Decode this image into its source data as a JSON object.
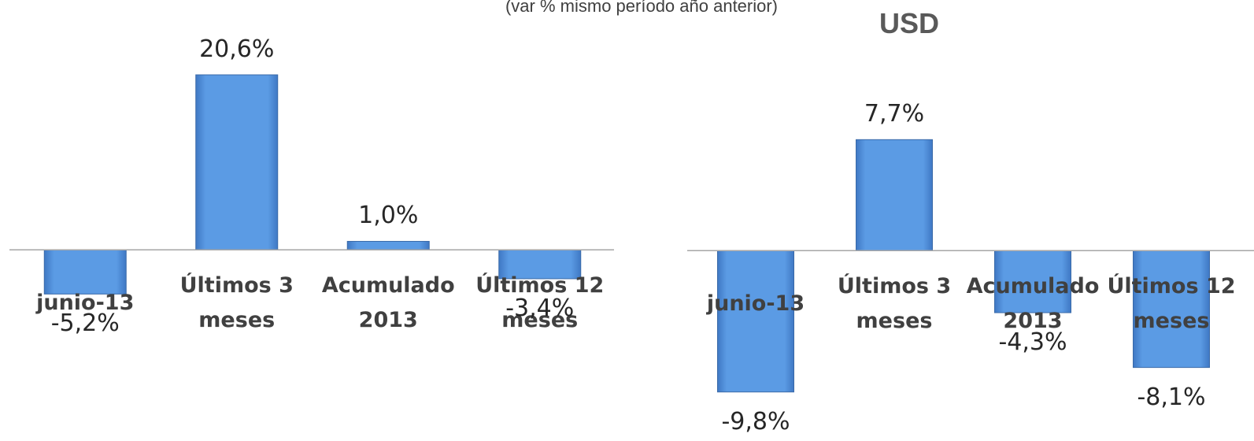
{
  "chart_data": [
    {
      "type": "bar",
      "subtitle": "(var % mismo período año anterior)",
      "categories": [
        "junio-13",
        "Últimos 3 meses",
        "Acumulado 2013",
        "Últimos 12 meses"
      ],
      "values": [
        -5.2,
        20.6,
        1.0,
        -3.4
      ],
      "value_labels": [
        "-5,2%",
        "20,6%",
        "1,0%",
        "-3,4%"
      ],
      "color": "#5b97de",
      "ylim": [
        -22.5,
        25.7
      ]
    },
    {
      "type": "bar",
      "title": "USD",
      "categories": [
        "junio-13",
        "Últimos 3 meses",
        "Acumulado 2013",
        "Últimos 12 meses"
      ],
      "values": [
        -9.8,
        7.7,
        -4.3,
        -8.1
      ],
      "value_labels": [
        "-9,8%",
        "7,7%",
        "-4,3%",
        "-8,1%"
      ],
      "color": "#5b97de",
      "ylim": [
        -13.2,
        15.2
      ]
    }
  ]
}
